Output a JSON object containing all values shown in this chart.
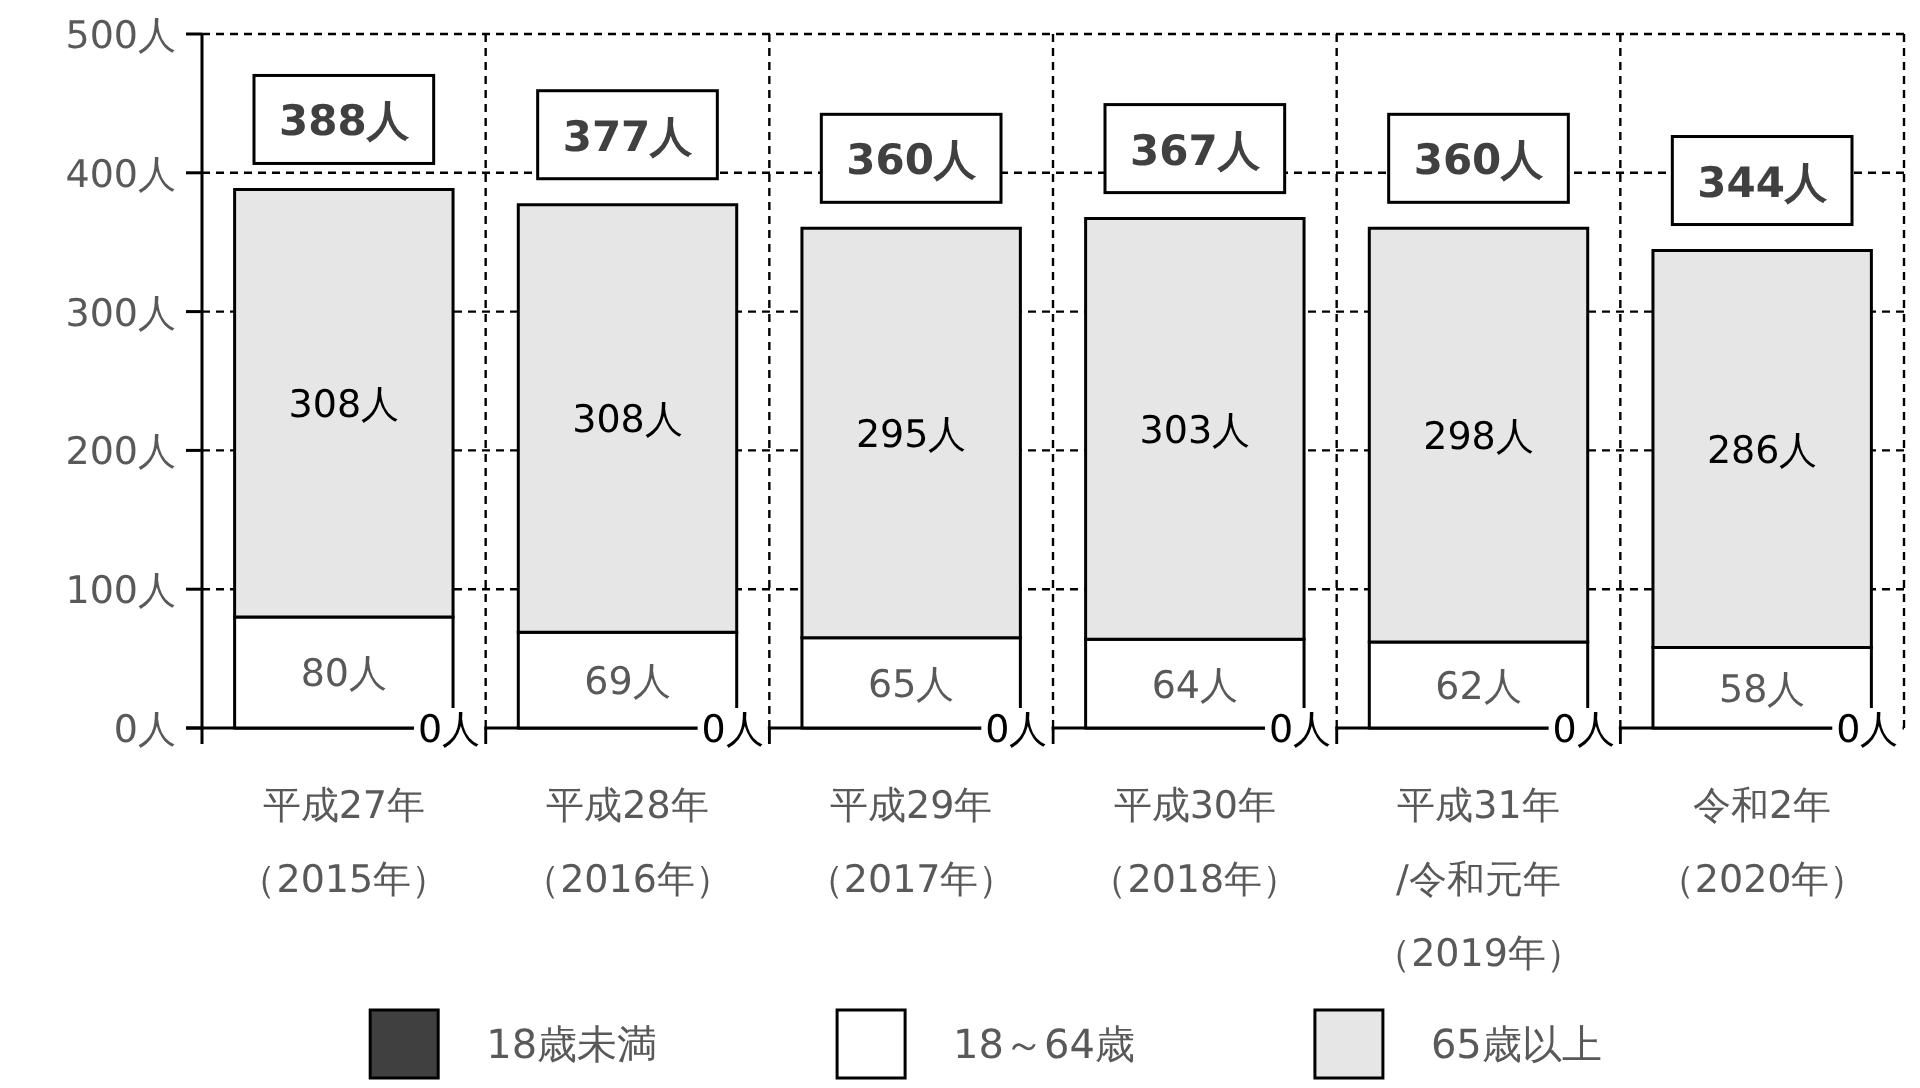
{
  "chart_data": {
    "type": "bar",
    "stacked": true,
    "categories": [
      "平成27年（2015年）",
      "平成28年（2016年）",
      "平成29年（2017年）",
      "平成30年（2018年）",
      "平成31年/令和元年（2019年）",
      "令和2年（2020年）"
    ],
    "series": [
      {
        "name": "18歳未満",
        "color": "#404040",
        "values": [
          0,
          0,
          0,
          0,
          0,
          0
        ],
        "value_labels": [
          "0人",
          "0人",
          "0人",
          "0人",
          "0人",
          "0人"
        ]
      },
      {
        "name": "18～64歳",
        "color": "#ffffff",
        "values": [
          80,
          69,
          65,
          64,
          62,
          58
        ],
        "value_labels": [
          "80人",
          "69人",
          "65人",
          "64人",
          "62人",
          "58人"
        ]
      },
      {
        "name": "65歳以上",
        "color": "#e6e6e6",
        "values": [
          308,
          308,
          295,
          303,
          298,
          286
        ],
        "value_labels": [
          "308人",
          "308人",
          "295人",
          "303人",
          "298人",
          "286人"
        ]
      }
    ],
    "totals": [
      "388人",
      "377人",
      "360人",
      "367人",
      "360人",
      "344人"
    ],
    "ylim": [
      0,
      500
    ],
    "yticks": [
      {
        "value": 0,
        "label": "0人"
      },
      {
        "value": 100,
        "label": "100人"
      },
      {
        "value": 200,
        "label": "200人"
      },
      {
        "value": 300,
        "label": "300人"
      },
      {
        "value": 400,
        "label": "400人"
      },
      {
        "value": 500,
        "label": "500人"
      }
    ],
    "grid": true,
    "legend": "bottom"
  }
}
